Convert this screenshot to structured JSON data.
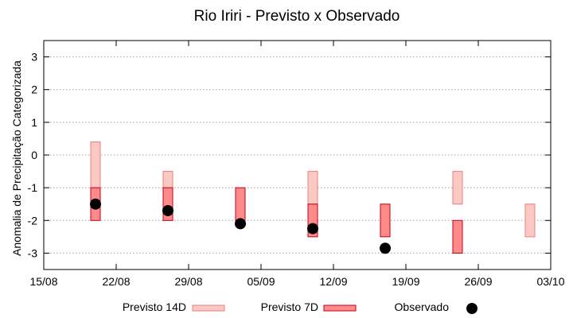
{
  "chart_data": {
    "type": "bar",
    "title": "Rio Iriri - Previsto x Observado",
    "ylabel": "Anomalia de Precipitação Categorizada",
    "xlabel": "",
    "ylim": [
      -3.5,
      3.5
    ],
    "yticks": [
      -3,
      -2,
      -1,
      0,
      1,
      2,
      3
    ],
    "xticks": [
      "15/08",
      "22/08",
      "29/08",
      "05/09",
      "12/09",
      "19/09",
      "26/09",
      "03/10"
    ],
    "xlim_days": [
      0,
      49
    ],
    "grid": true,
    "legend_position": "bottom",
    "legend": {
      "previsto14": "Previsto 14D",
      "previsto7": "Previsto 7D",
      "observado": "Observado"
    },
    "colors": {
      "previsto14_fill": "#fcc8c4",
      "previsto14_stroke": "#e87f78",
      "previsto7_fill": "#ff8a8a",
      "previsto7_stroke": "#c0001a",
      "observado": "#000000"
    },
    "series": [
      {
        "name": "Previsto 14D",
        "points": [
          {
            "date": "20/08",
            "low": -1,
            "high": 0.4
          },
          {
            "date": "27/08",
            "low": -2,
            "high": -0.5
          },
          {
            "date": "10/09",
            "low": -1.5,
            "high": -0.5
          },
          {
            "date": "24/09",
            "low": -1.5,
            "high": -0.5
          },
          {
            "date": "01/10",
            "low": -2.5,
            "high": -1.5
          }
        ]
      },
      {
        "name": "Previsto 7D",
        "points": [
          {
            "date": "20/08",
            "low": -2,
            "high": -1
          },
          {
            "date": "27/08",
            "low": -2,
            "high": -1
          },
          {
            "date": "03/09",
            "low": -2,
            "high": -1
          },
          {
            "date": "10/09",
            "low": -2.5,
            "high": -1.5
          },
          {
            "date": "17/09",
            "low": -2.5,
            "high": -1.5
          },
          {
            "date": "24/09",
            "low": -3,
            "high": -2
          }
        ]
      },
      {
        "name": "Observado",
        "points": [
          {
            "date": "20/08",
            "value": -1.5
          },
          {
            "date": "27/08",
            "value": -1.7
          },
          {
            "date": "03/09",
            "value": -2.1
          },
          {
            "date": "10/09",
            "value": -2.25
          },
          {
            "date": "17/09",
            "value": -2.85
          }
        ]
      }
    ]
  }
}
